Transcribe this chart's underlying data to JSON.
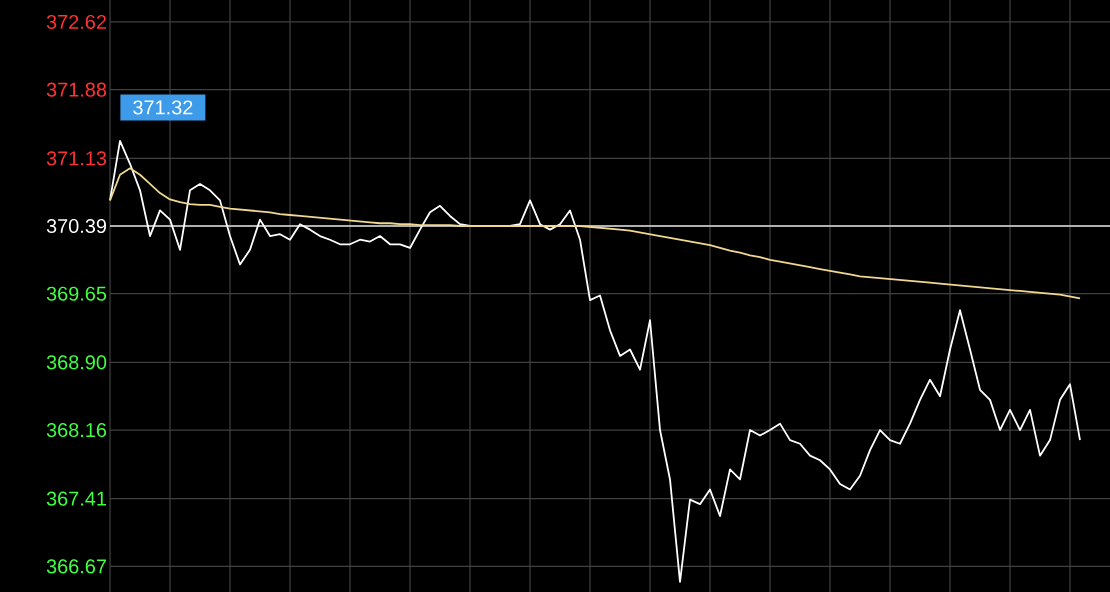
{
  "chart_data": {
    "type": "line",
    "categories": [
      null,
      null,
      null,
      null,
      null,
      null,
      null,
      null,
      null,
      null,
      null,
      null,
      null,
      null,
      null,
      null,
      null,
      null,
      null,
      null,
      null,
      null,
      null,
      null,
      null,
      null,
      null,
      null,
      null,
      null,
      null,
      null,
      null,
      null,
      null,
      null,
      null,
      null,
      null,
      null,
      null,
      null,
      null,
      null,
      null,
      null,
      null,
      null,
      null,
      null,
      null,
      null,
      null,
      null,
      null,
      null,
      null,
      null,
      null,
      null,
      null,
      null,
      null,
      null,
      null,
      null,
      null,
      null,
      null,
      null,
      null,
      null,
      null,
      null,
      null,
      null,
      null,
      null,
      null,
      null,
      null,
      null,
      null,
      null,
      null,
      null,
      null,
      null,
      null,
      null,
      null,
      null,
      null,
      null,
      null,
      null,
      null,
      null,
      null,
      null
    ],
    "series": [
      {
        "color": "#ffffff",
        "values": [
          370.67,
          371.32,
          371.07,
          370.78,
          370.28,
          370.56,
          370.46,
          370.13,
          370.78,
          370.85,
          370.78,
          370.67,
          370.28,
          369.97,
          370.13,
          370.46,
          370.28,
          370.3,
          370.24,
          370.41,
          370.35,
          370.28,
          370.24,
          370.19,
          370.19,
          370.24,
          370.22,
          370.28,
          370.19,
          370.19,
          370.15,
          370.35,
          370.54,
          370.61,
          370.5,
          370.41,
          370.39,
          370.39,
          370.39,
          370.39,
          370.39,
          370.41,
          370.67,
          370.41,
          370.35,
          370.41,
          370.56,
          370.24,
          369.58,
          369.63,
          369.25,
          368.97,
          369.04,
          368.82,
          369.36,
          368.16,
          367.62,
          366.5,
          367.4,
          367.35,
          367.51,
          367.22,
          367.73,
          367.62,
          368.16,
          368.1,
          368.16,
          368.23,
          368.05,
          368.01,
          367.88,
          367.83,
          367.73,
          367.57,
          367.51,
          367.66,
          367.94,
          368.16,
          368.05,
          368.01,
          368.23,
          368.49,
          368.71,
          368.53,
          369.04,
          369.47,
          369.04,
          368.6,
          368.49,
          368.16,
          368.38,
          368.16,
          368.38,
          367.88,
          368.05,
          368.49,
          368.66,
          368.05,
          null,
          null
        ]
      },
      {
        "color": "#f0d890",
        "values": [
          370.67,
          370.95,
          371.02,
          370.95,
          370.85,
          370.75,
          370.68,
          370.65,
          370.63,
          370.62,
          370.62,
          370.6,
          370.58,
          370.57,
          370.56,
          370.55,
          370.54,
          370.52,
          370.51,
          370.5,
          370.49,
          370.48,
          370.47,
          370.46,
          370.45,
          370.44,
          370.43,
          370.42,
          370.42,
          370.41,
          370.41,
          370.4,
          370.4,
          370.4,
          370.4,
          370.39,
          370.39,
          370.39,
          370.39,
          370.39,
          370.39,
          370.39,
          370.39,
          370.39,
          370.39,
          370.39,
          370.39,
          370.39,
          370.38,
          370.37,
          370.36,
          370.35,
          370.34,
          370.32,
          370.3,
          370.28,
          370.26,
          370.24,
          370.22,
          370.2,
          370.18,
          370.15,
          370.12,
          370.1,
          370.07,
          370.05,
          370.02,
          370.0,
          369.98,
          369.96,
          369.94,
          369.92,
          369.9,
          369.88,
          369.86,
          369.84,
          369.83,
          369.82,
          369.81,
          369.8,
          369.79,
          369.78,
          369.77,
          369.76,
          369.75,
          369.74,
          369.73,
          369.72,
          369.71,
          369.7,
          369.69,
          369.68,
          369.67,
          369.66,
          369.65,
          369.64,
          369.62,
          369.6,
          null,
          null
        ]
      }
    ],
    "ylim": [
      366.39,
      372.86
    ],
    "yticks": [
      366.67,
      367.41,
      368.16,
      {
        "value": 368.9,
        "label": "368.90"
      },
      369.65,
      370.39,
      371.13,
      371.88,
      372.62
    ],
    "ref_lines": [
      {
        "axis": "y",
        "value": 370.39,
        "color": "#e0e0e0"
      }
    ],
    "annotations": [
      "371.32"
    ],
    "grid": true,
    "tick_labels": "y",
    "marker": "none",
    "line_style": "solid"
  }
}
